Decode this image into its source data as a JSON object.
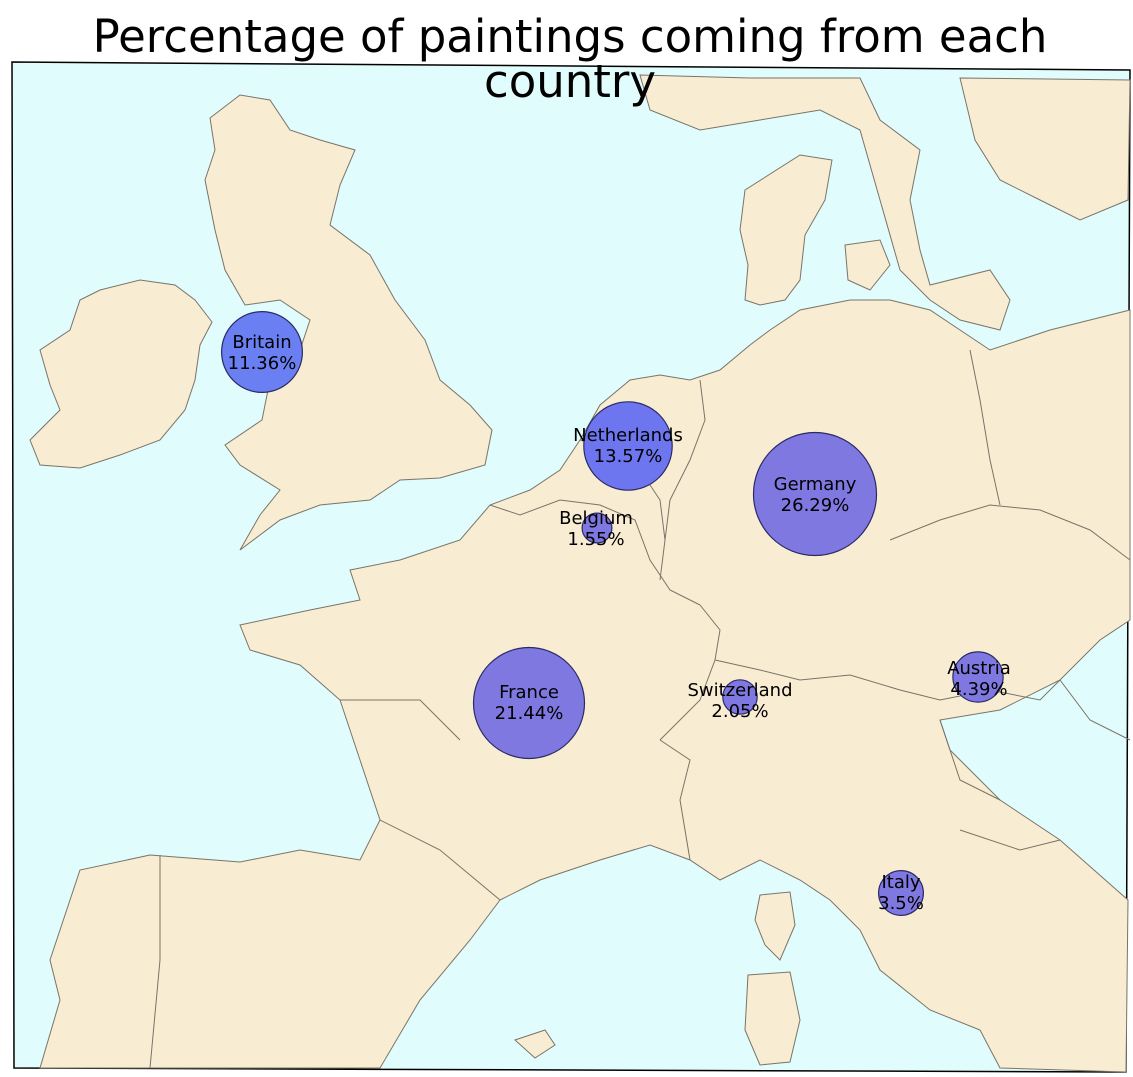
{
  "title": "Percentage of paintings coming from each country",
  "colors": {
    "sea": "#e0fcfc",
    "land": "#f8ecd2",
    "border": "#7a7468",
    "bubble_britain": "#6a7ff2",
    "bubble_netherlands": "#6e76ef",
    "bubble": "#7f78e0",
    "bubble_edge": "#2a2a66"
  },
  "countries": [
    {
      "id": "britain",
      "name": "Britain",
      "pct": "11.36%",
      "value": 11.36
    },
    {
      "id": "netherlands",
      "name": "Netherlands",
      "pct": "13.57%",
      "value": 13.57
    },
    {
      "id": "belgium",
      "name": "Belgium",
      "pct": "1.55%",
      "value": 1.55
    },
    {
      "id": "germany",
      "name": "Germany",
      "pct": "26.29%",
      "value": 26.29
    },
    {
      "id": "france",
      "name": "France",
      "pct": "21.44%",
      "value": 21.44
    },
    {
      "id": "switzerland",
      "name": "Switzerland",
      "pct": "2.05%",
      "value": 2.05
    },
    {
      "id": "austria",
      "name": "Austria",
      "pct": "4.39%",
      "value": 4.39
    },
    {
      "id": "italy",
      "name": "Italy",
      "pct": "3.5%",
      "value": 3.5
    }
  ]
}
